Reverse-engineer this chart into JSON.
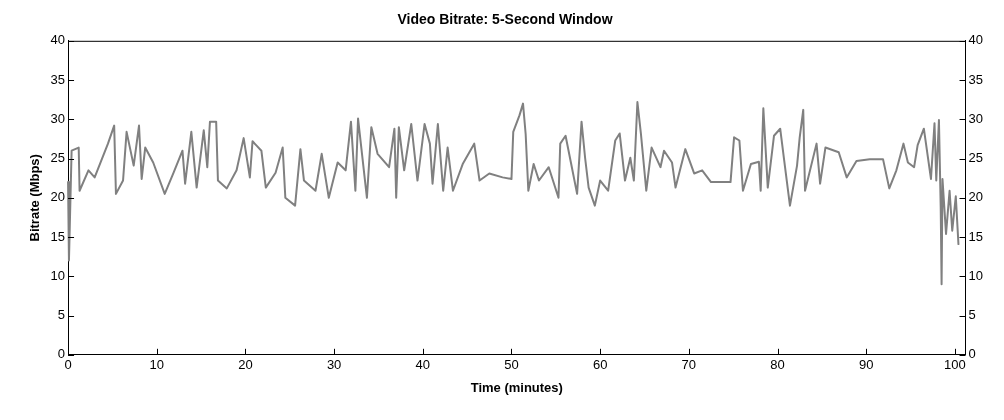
{
  "chart_data": {
    "type": "line",
    "title": "Video Bitrate: 5-Second Window",
    "xlabel": "Time (minutes)",
    "ylabel": "Bitrate (Mbps)",
    "xlim": [
      0,
      101.2
    ],
    "xticks": [
      0,
      10,
      20,
      30,
      40,
      50,
      60,
      70,
      80,
      90,
      100
    ],
    "ylim": [
      0,
      40
    ],
    "yticks": [
      0,
      5,
      10,
      15,
      20,
      25,
      30,
      35,
      40
    ],
    "y2lim": [
      0,
      40
    ],
    "y2ticks": [
      0,
      5,
      10,
      15,
      20,
      25,
      30,
      35,
      40
    ],
    "grid": false,
    "legend": false,
    "marker": "none",
    "line_style": "solid",
    "series": [
      {
        "color": "#808080",
        "x": [
          0,
          0.1,
          0.4,
          1.2,
          1.3,
          2.3,
          3.0,
          4.5,
          5.2,
          5.4,
          6.2,
          6.6,
          7.4,
          8.0,
          8.3,
          8.7,
          9.6,
          10.9,
          11.9,
          12.9,
          13.2,
          13.9,
          14.5,
          15.3,
          15.7,
          16.0,
          16.7,
          16.9,
          17.9,
          19.0,
          19.8,
          20.5,
          20.8,
          21.8,
          22.3,
          23.4,
          24.2,
          24.5,
          25.6,
          26.2,
          26.6,
          27.9,
          28.6,
          29.4,
          30.4,
          31.3,
          31.9,
          32.4,
          32.7,
          33.7,
          34.2,
          34.9,
          36.2,
          36.8,
          37.0,
          37.3,
          37.9,
          38.7,
          39.4,
          40.2,
          40.8,
          41.1,
          41.7,
          42.3,
          42.8,
          43.4,
          44.5,
          45.8,
          46.4,
          47.5,
          49.0,
          50.0,
          50.2,
          50.9,
          51.3,
          51.6,
          51.9,
          52.5,
          53.1,
          54.2,
          55.3,
          55.5,
          56.1,
          56.7,
          57.4,
          57.9,
          58.3,
          58.7,
          59.4,
          60.0,
          60.9,
          61.7,
          62.2,
          62.8,
          63.4,
          63.8,
          64.2,
          64.6,
          65.2,
          65.8,
          66.8,
          67.2,
          68.1,
          68.5,
          69.6,
          70.6,
          71.5,
          72.5,
          74.7,
          75.1,
          75.7,
          76.1,
          77.0,
          77.9,
          78.1,
          78.4,
          78.9,
          79.6,
          80.3,
          80.7,
          81.4,
          82.2,
          82.5,
          82.9,
          83.1,
          84.4,
          84.8,
          85.4,
          86.9,
          87.8,
          88.9,
          90.4,
          91.9,
          92.6,
          93.4,
          94.2,
          94.7,
          95.4,
          95.8,
          96.5,
          97.3,
          97.7,
          97.9,
          98.2,
          98.4,
          98.5,
          98.6,
          99.0,
          99.4,
          99.7,
          100.1,
          100.4
        ],
        "values": [
          22,
          12,
          26,
          26.4,
          20.9,
          23.5,
          22.6,
          26.9,
          29.2,
          20.5,
          22.2,
          28.4,
          24.1,
          29.2,
          22.4,
          26.4,
          24.5,
          20.5,
          23.2,
          26,
          21.8,
          28.4,
          21.3,
          28.6,
          23.9,
          29.7,
          29.7,
          22.2,
          21.2,
          23.5,
          27.6,
          22.6,
          27.2,
          26,
          21.3,
          23.2,
          26.4,
          20,
          19,
          26.2,
          22.2,
          20.9,
          25.6,
          20,
          24.5,
          23.5,
          29.7,
          20.9,
          30.1,
          20,
          29,
          25.6,
          23.9,
          28.8,
          20,
          29,
          23.5,
          29.4,
          22.2,
          29.4,
          26.9,
          21.8,
          29.4,
          20.9,
          26.4,
          20.9,
          24.3,
          26.9,
          22.2,
          23.1,
          22.6,
          22.4,
          28.4,
          30.5,
          32,
          28.1,
          20.9,
          24.3,
          22.2,
          23.9,
          20,
          26.9,
          27.9,
          24.5,
          20.5,
          29.7,
          25.1,
          21.3,
          19,
          22.2,
          20.9,
          27.3,
          28.2,
          22.2,
          25.1,
          22.2,
          32.2,
          28.1,
          20.9,
          26.4,
          23.9,
          26,
          24.5,
          21.3,
          26.2,
          23.1,
          23.5,
          22,
          22,
          27.7,
          27.3,
          20.9,
          24.3,
          24.6,
          20.9,
          31.4,
          21.3,
          27.9,
          28.8,
          25.2,
          19,
          24.1,
          27.7,
          31.2,
          20.9,
          26.9,
          21.8,
          26.4,
          25.8,
          22.6,
          24.7,
          24.9,
          24.9,
          21.2,
          23.5,
          26.9,
          24.5,
          23.9,
          26.7,
          28.8,
          22.4,
          29.5,
          22.2,
          29.9,
          18.8,
          9,
          22.4,
          15.4,
          20.9,
          15.8,
          20.2,
          14.1
        ]
      }
    ]
  }
}
